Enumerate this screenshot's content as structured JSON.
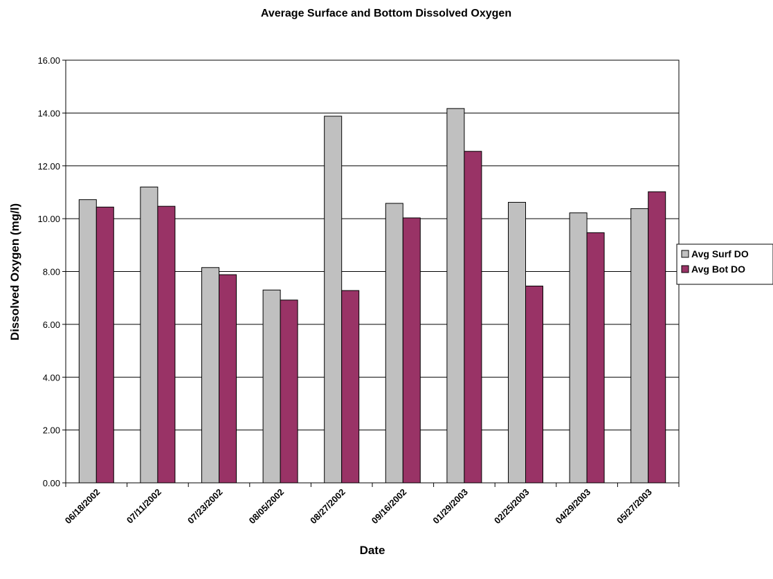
{
  "chart_data": {
    "type": "bar",
    "title": "Average Surface and Bottom Dissolved Oxygen",
    "xlabel": "Date",
    "ylabel": "Dissolved Oxygen (mg/l)",
    "ylim": [
      0,
      16
    ],
    "yticks": [
      "0.00",
      "2.00",
      "4.00",
      "6.00",
      "8.00",
      "10.00",
      "12.00",
      "14.00",
      "16.00"
    ],
    "grid": true,
    "legend_position": "right",
    "categories": [
      "06/18/2002",
      "07/11/2002",
      "07/23/2002",
      "08/05/2002",
      "08/27/2002",
      "09/16/2002",
      "01/29/2003",
      "02/25/2003",
      "04/29/2003",
      "05/27/2003"
    ],
    "series": [
      {
        "name": "Avg Surf DO",
        "color": "#c0c0c0",
        "values": [
          10.72,
          11.2,
          8.15,
          7.3,
          13.88,
          10.58,
          14.17,
          10.62,
          10.22,
          10.38
        ]
      },
      {
        "name": "Avg Bot DO",
        "color": "#993366",
        "values": [
          10.44,
          10.47,
          7.88,
          6.92,
          7.28,
          10.03,
          12.55,
          7.45,
          9.47,
          11.02
        ]
      }
    ]
  }
}
